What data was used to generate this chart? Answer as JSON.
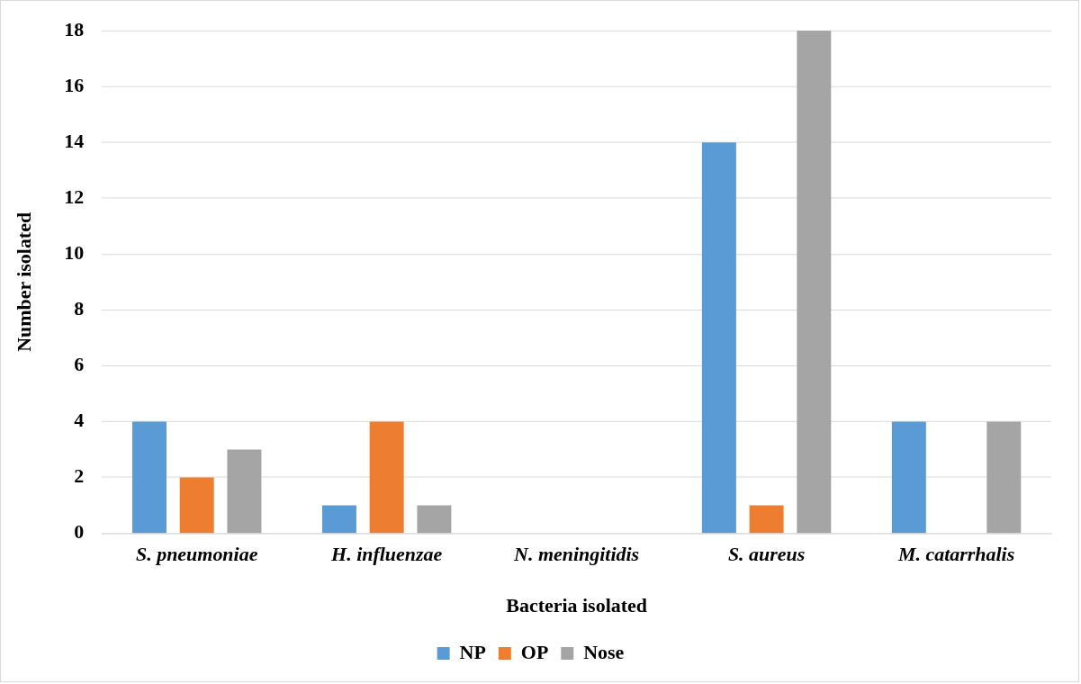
{
  "chart_data": {
    "type": "bar",
    "xlabel": "Bacteria isolated",
    "ylabel": "Number isolated",
    "categories": [
      "S. pneumoniae",
      "H. influenzae",
      "N. meningitidis",
      "S. aureus",
      "M. catarrhalis"
    ],
    "series": [
      {
        "name": "NP",
        "color": "#5b9bd5",
        "values": [
          4,
          1,
          0,
          14,
          4
        ]
      },
      {
        "name": "OP",
        "color": "#ed7d31",
        "values": [
          2,
          4,
          0,
          1,
          0
        ]
      },
      {
        "name": "Nose",
        "color": "#a5a5a5",
        "values": [
          3,
          1,
          0,
          18,
          4
        ]
      }
    ],
    "ylim": [
      0,
      18
    ],
    "yticks": [
      0,
      2,
      4,
      6,
      8,
      10,
      12,
      14,
      16,
      18
    ],
    "grid": "y",
    "legend": "bottom"
  }
}
